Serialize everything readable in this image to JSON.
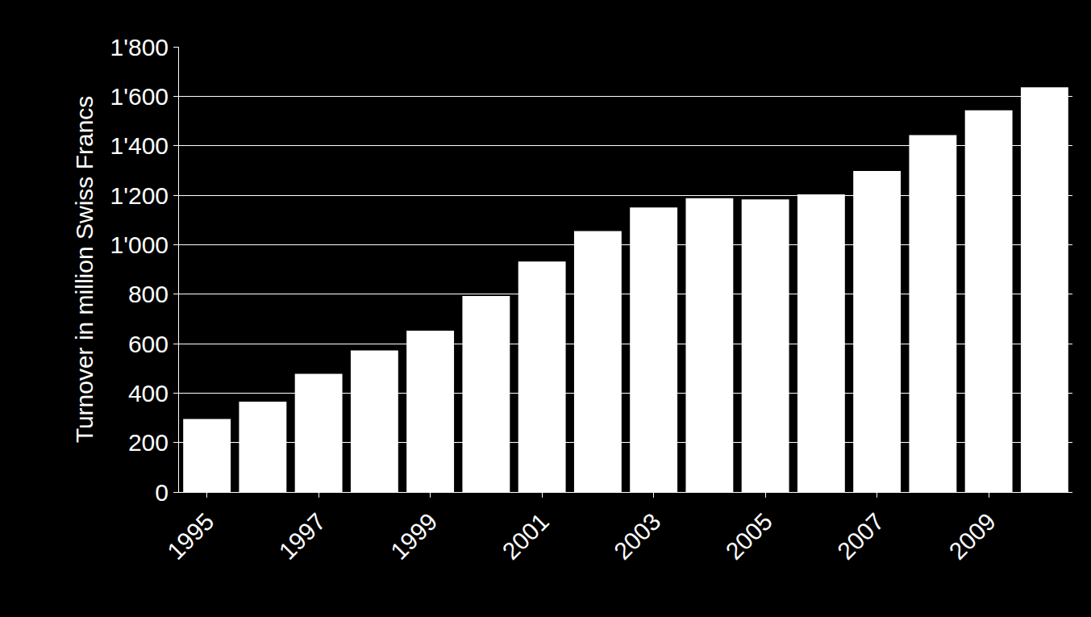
{
  "chart_data": {
    "type": "bar",
    "y_label": "Turnover in million Swiss Francs",
    "categories": [
      "1995",
      null,
      "1997",
      null,
      "1999",
      null,
      "2001",
      null,
      "2003",
      null,
      "2005",
      null,
      "2007",
      null,
      "2009",
      null
    ],
    "values": [
      295,
      365,
      478,
      572,
      652,
      792,
      932,
      1055,
      1150,
      1188,
      1183,
      1203,
      1298,
      1443,
      1543,
      1636
    ],
    "color": "#ffffff",
    "ylim": [
      0,
      1800
    ],
    "yticks": [
      0,
      200,
      400,
      600,
      800,
      {
        "value": 1000,
        "label": "1'000"
      },
      {
        "value": 1200,
        "label": "1'200"
      },
      {
        "value": 1400,
        "label": "1'400"
      },
      {
        "value": 1600,
        "label": "1'600"
      },
      {
        "value": 1800,
        "label": "1'800"
      }
    ],
    "grid": true
  }
}
